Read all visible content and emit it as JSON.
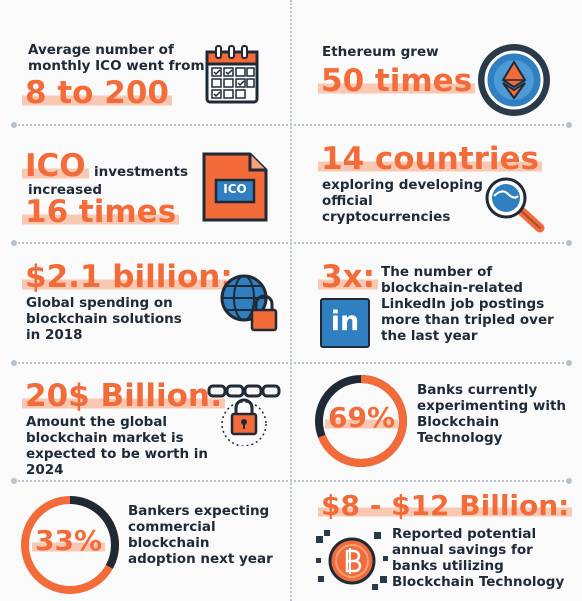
{
  "cells": {
    "ico_monthly": {
      "text": "Average number of monthly ICO went from",
      "highlight": "8 to 200"
    },
    "ethereum": {
      "text": "Ethereum grew",
      "highlight": "50 times"
    },
    "ico_investments": {
      "highlight_a": "ICO",
      "text_a": "investments",
      "text_b": "increased",
      "highlight_b": "16 times",
      "badge": "ICO"
    },
    "countries": {
      "highlight": "14 countries",
      "text": "exploring developing official cryptocurrencies"
    },
    "spending": {
      "highlight": "$2.1 billion:",
      "text": "Global spending on blockchain solutions in 2018"
    },
    "linkedin": {
      "highlight": "3x:",
      "text": "The number of blockchain-related LinkedIn job postings more than tripled over the last year",
      "logo": "in"
    },
    "market": {
      "highlight": "20$ Billion:",
      "text": "Amount the global blockchain market is expected to be worth in 2024"
    },
    "banks": {
      "percent_label": "69%",
      "percent_value": 69,
      "text": "Banks currently experimenting with Blockchain Technology"
    },
    "bankers": {
      "percent_label": "33%",
      "percent_value": 33,
      "text": "Bankers expecting commercial blockchain adoption next year"
    },
    "savings": {
      "highlight": "$8 - $12 Billion:",
      "text": "Reported potential annual savings for banks utilizing Blockchain Technology"
    }
  },
  "colors": {
    "accent": "#f26b38",
    "highlight": "#f8c8b2",
    "dark": "#2b3a4a",
    "blue": "#2f7fc1"
  }
}
